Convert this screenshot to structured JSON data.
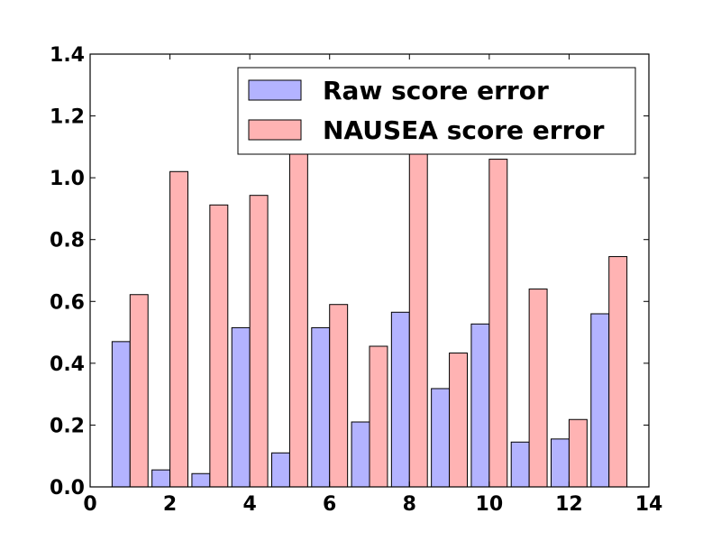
{
  "chart_data": {
    "type": "bar",
    "xlim": [
      0,
      14
    ],
    "ylim": [
      0,
      1.4
    ],
    "x_ticks": [
      "0",
      "2",
      "4",
      "6",
      "8",
      "10",
      "12",
      "14"
    ],
    "y_ticks": [
      "0.0",
      "0.2",
      "0.4",
      "0.6",
      "0.8",
      "1.0",
      "1.2",
      "1.4"
    ],
    "categories": [
      1,
      2,
      3,
      4,
      5,
      6,
      7,
      8,
      9,
      10,
      11,
      12,
      13
    ],
    "series": [
      {
        "name": "Raw score error",
        "color": "#b3b3ff",
        "values": [
          0.47,
          0.055,
          0.043,
          0.515,
          0.11,
          0.515,
          0.21,
          0.565,
          0.318,
          0.527,
          0.145,
          0.155,
          0.56
        ]
      },
      {
        "name": "NAUSEA score error",
        "color": "#ffb3b3",
        "values": [
          0.622,
          1.02,
          0.912,
          0.943,
          1.1,
          0.59,
          0.455,
          1.1,
          0.433,
          1.06,
          0.64,
          0.218,
          0.745
        ]
      }
    ],
    "legend_position": "top-right",
    "grid": false
  }
}
